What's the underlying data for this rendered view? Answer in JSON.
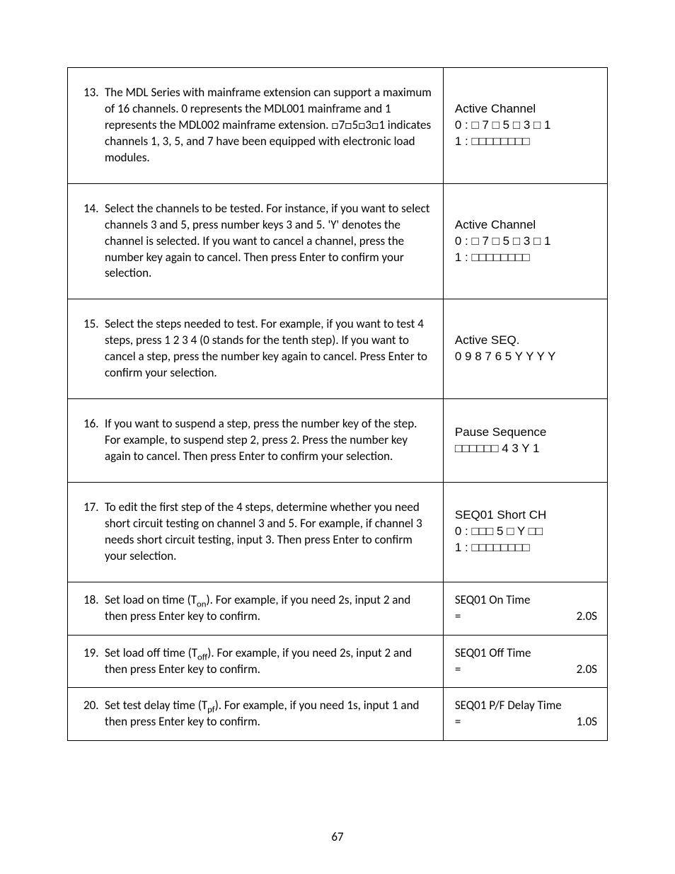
{
  "page_number": "67",
  "box": "□",
  "rows": [
    {
      "num": "13.",
      "text_html": "The MDL Series with mainframe extension can support a maximum of 16 channels. 0 represents the MDL001 mainframe and 1 represents the MDL002 mainframe extension. □7□5□3□1 indicates channels 1, 3, 5, and 7 have been equipped with electronic load modules.",
      "display": [
        "Active Channel",
        "0 : □ 7 □ 5 □ 3 □ 1",
        "1 : □□□□□□□□"
      ],
      "tight": false
    },
    {
      "num": "14.",
      "text_html": "Select the channels to be tested. For instance, if you want to select channels 3 and 5, press number keys 3 and 5. 'Y' denotes the channel is selected.  If you want to cancel a channel, press the number key again to cancel. Then press Enter to confirm your selection.",
      "display": [
        "Active Channel",
        "0 : □ 7 □ 5 □ 3 □ 1",
        "1 : □□□□□□□□"
      ],
      "tight": false
    },
    {
      "num": "15.",
      "text_html": "Select the steps needed to test. For example, if you want to test 4 steps, press 1 2 3 4 (0 stands for the tenth step). If you want to cancel a step, press the number key again to cancel. Press Enter to confirm your selection.",
      "display": [
        "Active SEQ.",
        "0 9 8 7 6 5 Y Y Y Y"
      ],
      "tight": false
    },
    {
      "num": "16.",
      "text_html": "If you want to suspend a step, press the number key of the step. For example, to suspend step 2, press 2. Press the number key again to cancel. Then press Enter to confirm your selection.",
      "display": [
        "Pause Sequence",
        "□□□□□□ 4 3 Y 1"
      ],
      "tight": false
    },
    {
      "num": "17.",
      "text_html": "To edit the first step of the 4 steps, determine whether you need short circuit testing on channel 3 and 5. For example, if channel 3 needs short circuit testing, input 3. Then press Enter to confirm your selection.",
      "display": [
        "SEQ01 Short CH",
        "0 : □□□ 5 □ Y □□",
        "1 : □□□□□□□□"
      ],
      "tight": false
    },
    {
      "num": "18.",
      "text_html": "Set load on time (T<span class=\"sub\">on</span>). For example, if you need 2s, input 2 and then press Enter key to confirm.",
      "display_kv": {
        "title": "SEQ01 On Time",
        "eq": "=",
        "val": "2.0S"
      },
      "tight": true
    },
    {
      "num": "19.",
      "text_html": "Set load off time (T<span class=\"sub\">off</span>). For example, if you need 2s, input 2 and then press Enter key to confirm.",
      "display_kv": {
        "title": "SEQ01 Off Time",
        "eq": "=",
        "val": "2.0S"
      },
      "tight": true
    },
    {
      "num": "20.",
      "text_html": "Set test delay time (T<span class=\"sub\">pf</span>). For example, if you need 1s, input 1 and then press Enter key to confirm.",
      "display_kv": {
        "title": "SEQ01  P/F Delay Time",
        "eq": "=",
        "val": "1.0S"
      },
      "tight": true
    }
  ]
}
